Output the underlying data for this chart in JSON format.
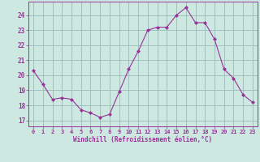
{
  "x": [
    0,
    1,
    2,
    3,
    4,
    5,
    6,
    7,
    8,
    9,
    10,
    11,
    12,
    13,
    14,
    15,
    16,
    17,
    18,
    19,
    20,
    21,
    22,
    23
  ],
  "y": [
    20.3,
    19.4,
    18.4,
    18.5,
    18.4,
    17.7,
    17.5,
    17.2,
    17.4,
    18.9,
    20.4,
    21.6,
    23.0,
    23.2,
    23.2,
    24.0,
    24.5,
    23.5,
    23.5,
    22.4,
    20.4,
    19.8,
    18.7,
    18.2
  ],
  "line_color": "#993399",
  "marker": "D",
  "marker_size": 2.0,
  "bg_color": "#cce8e0",
  "grid_color": "#99bbbb",
  "tick_color": "#993399",
  "xlabel": "Windchill (Refroidissement éolien,°C)",
  "ylabel_ticks": [
    17,
    18,
    19,
    20,
    21,
    22,
    23,
    24
  ],
  "xtick_labels": [
    "0",
    "1",
    "2",
    "3",
    "4",
    "5",
    "6",
    "7",
    "8",
    "9",
    "10",
    "11",
    "12",
    "13",
    "14",
    "15",
    "16",
    "17",
    "18",
    "19",
    "20",
    "21",
    "22",
    "23"
  ],
  "ylim": [
    16.6,
    24.9
  ],
  "xlim": [
    -0.5,
    23.5
  ]
}
